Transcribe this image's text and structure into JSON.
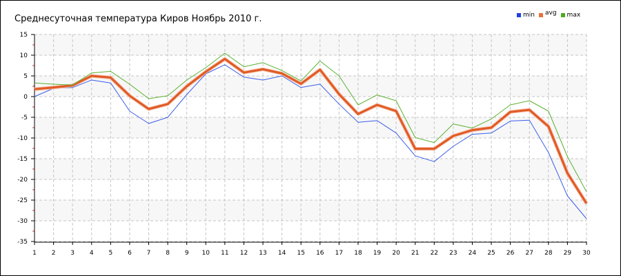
{
  "chart_data": {
    "type": "line",
    "title": "Среднесуточная температура Киров  Ноябрь 2010 г.",
    "x": [
      1,
      2,
      3,
      4,
      5,
      6,
      7,
      8,
      9,
      10,
      11,
      12,
      13,
      14,
      15,
      16,
      17,
      18,
      19,
      20,
      21,
      22,
      23,
      24,
      25,
      26,
      27,
      28,
      29,
      30
    ],
    "ylim": [
      -35,
      15
    ],
    "yticks": [
      15,
      10,
      5,
      0,
      -5,
      -10,
      -15,
      -20,
      -25,
      -30,
      -35
    ],
    "grid": true,
    "legend_position": "top-right",
    "series": [
      {
        "name": "min",
        "color": "#3b5ee8",
        "values": [
          0,
          2,
          2.2,
          4,
          3.3,
          -3.5,
          -6.5,
          -5,
          0.5,
          5.5,
          7.7,
          4.7,
          4,
          5,
          2.2,
          3,
          -1.8,
          -6.2,
          -5.8,
          -8.8,
          -14.3,
          -15.7,
          -12,
          -9.1,
          -8.8,
          -5.9,
          -5.7,
          -13.5,
          -24,
          -29.5
        ]
      },
      {
        "name": "avg",
        "color": "#e05a25",
        "values": [
          1.8,
          2.2,
          2.7,
          5,
          4.6,
          0.2,
          -3,
          -1.8,
          2.5,
          6,
          9.1,
          5.8,
          6.6,
          5.6,
          3.1,
          6.5,
          0.6,
          -4.2,
          -2,
          -3.5,
          -12.6,
          -12.6,
          -9.5,
          -8.1,
          -7.5,
          -3.7,
          -3.2,
          -7.2,
          -18.5,
          -25.8
        ]
      },
      {
        "name": "max",
        "color": "#5cb030",
        "values": [
          3.3,
          3,
          2.8,
          5.7,
          6.1,
          3,
          -0.5,
          0.2,
          4,
          7,
          10.5,
          7.2,
          8.2,
          6.3,
          3.8,
          8.6,
          5,
          -2,
          0.4,
          -1,
          -9.9,
          -11.1,
          -6.6,
          -7.6,
          -5.4,
          -2,
          -1,
          -3.5,
          -14.5,
          -23
        ]
      }
    ]
  }
}
